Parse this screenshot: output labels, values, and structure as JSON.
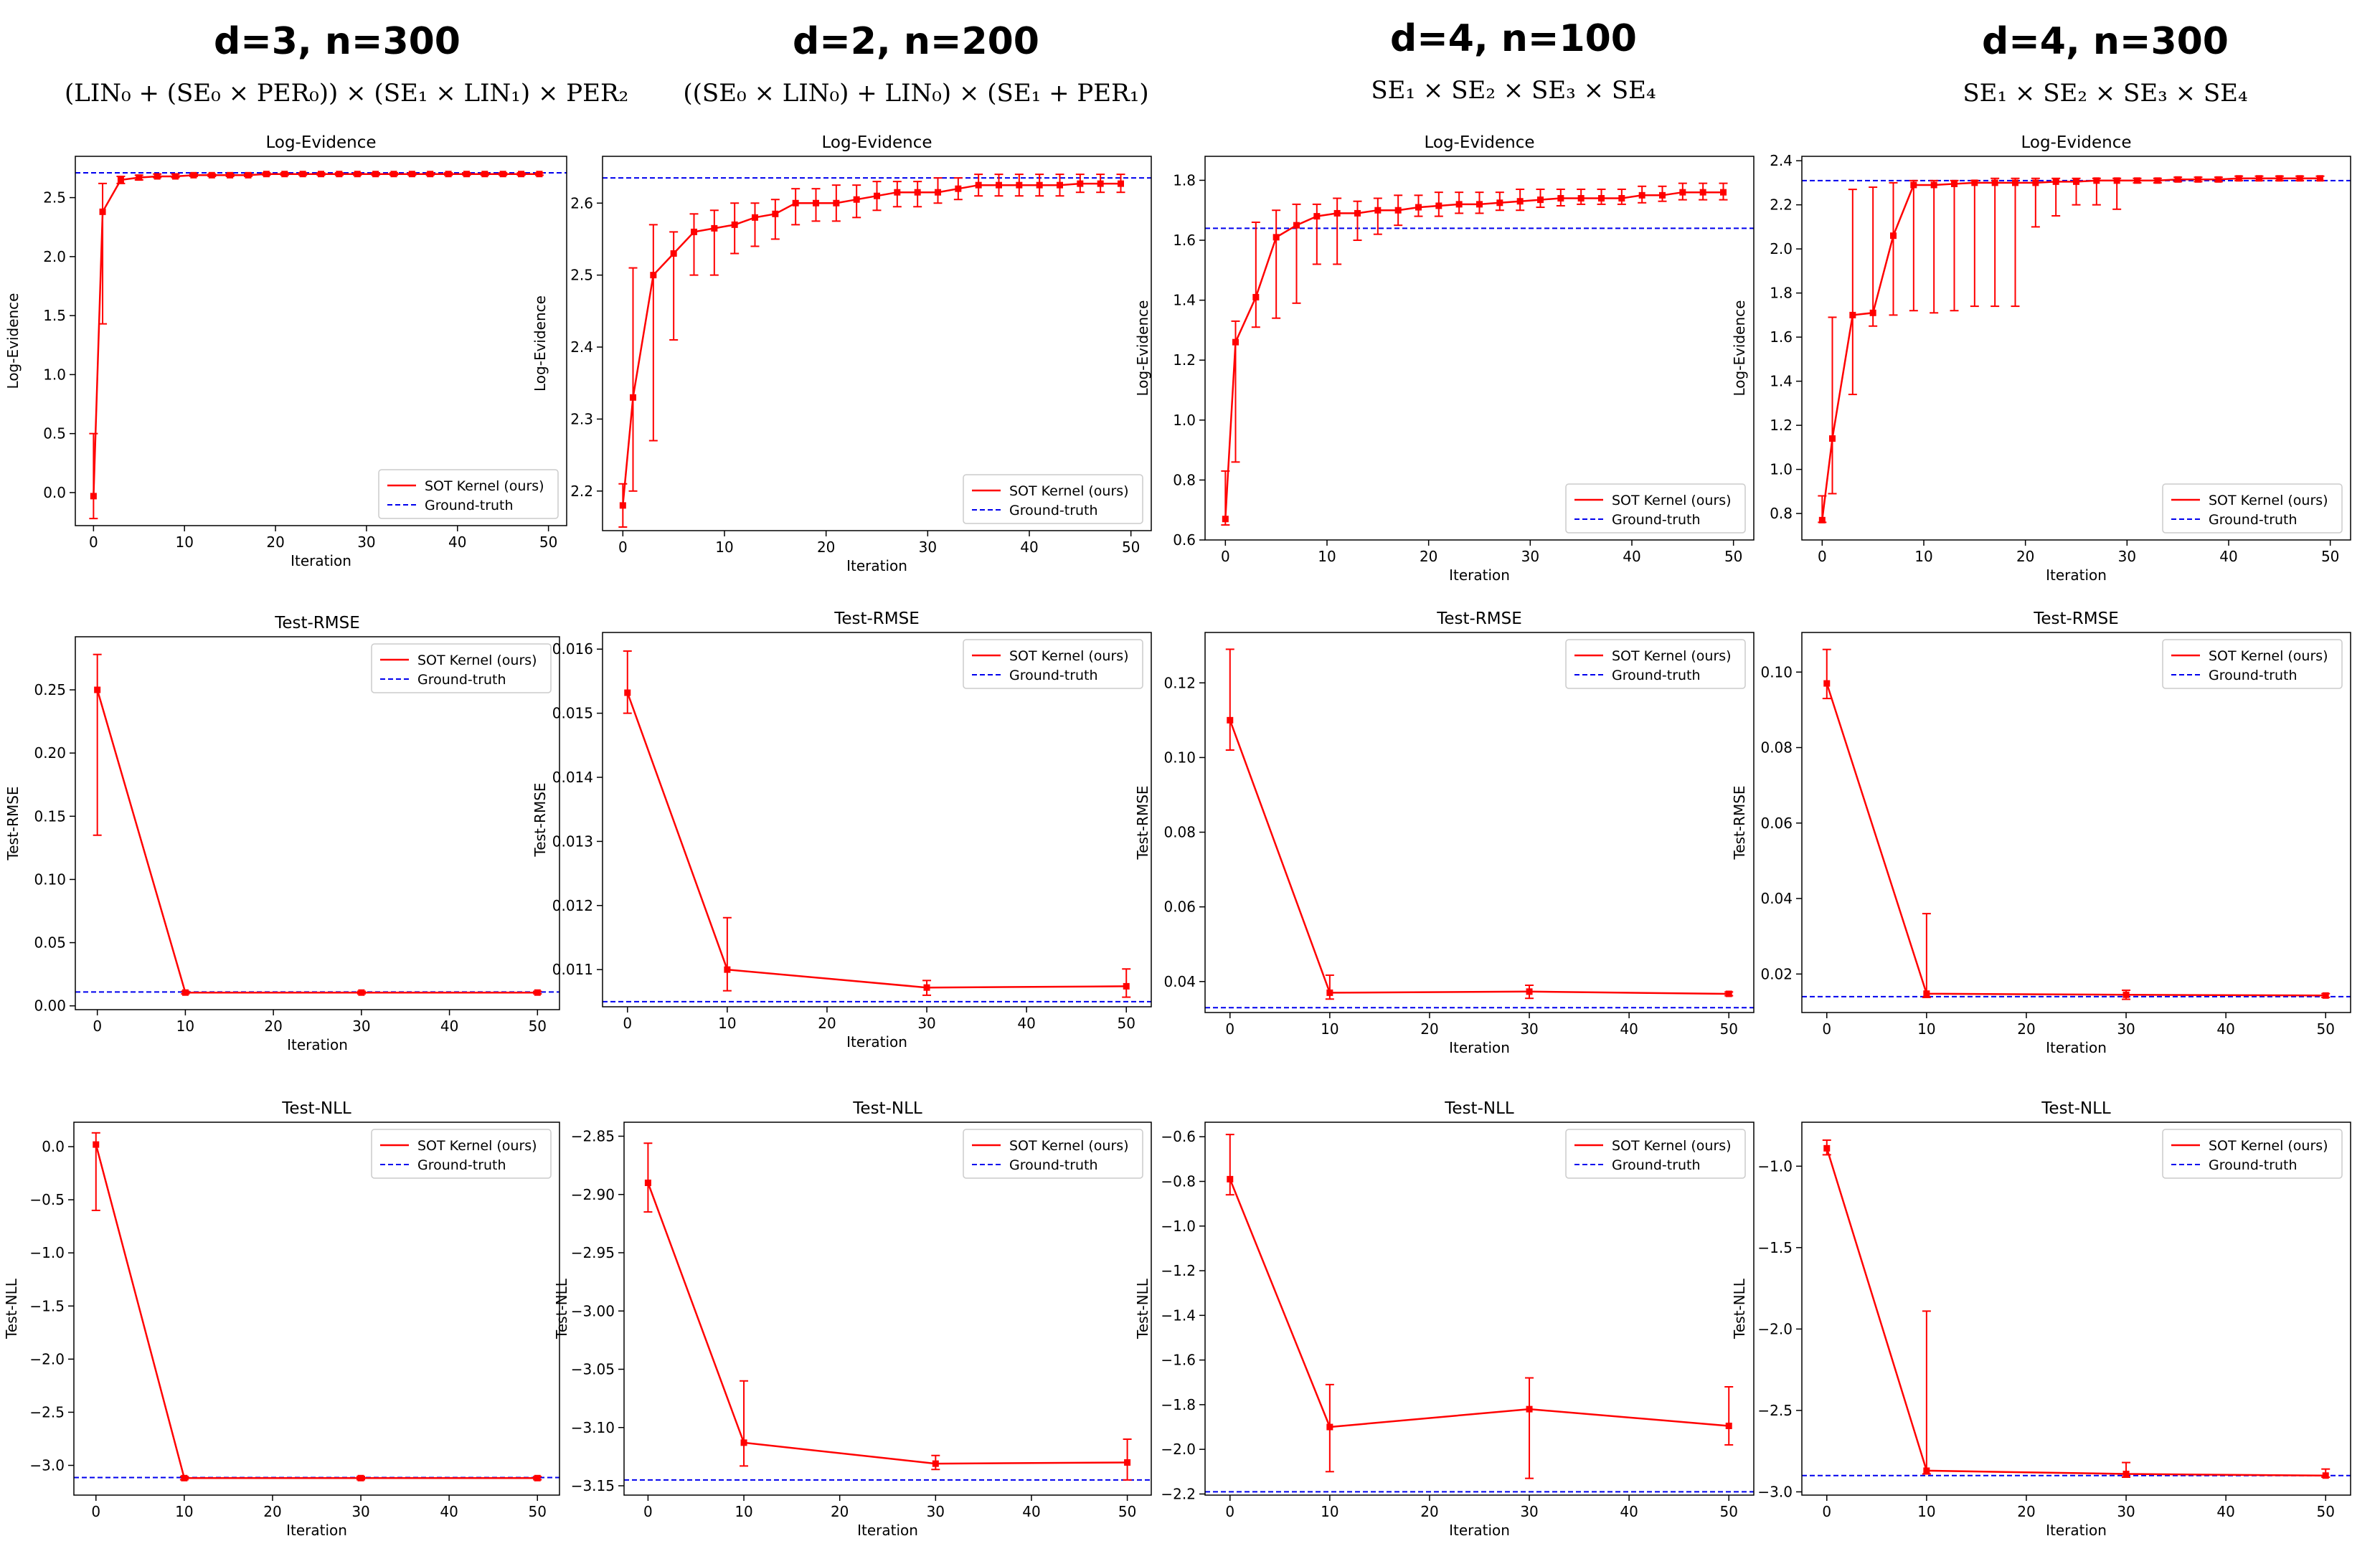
{
  "colors": {
    "sot": "#ff0000",
    "ground_truth": "#0000ee",
    "axis": "#000000"
  },
  "columns": [
    {
      "title": "d=3, n=300",
      "formula": "(LIN₀ + (SE₀ × PER₀)) × (SE₁ × LIN₁) × PER₂"
    },
    {
      "title": "d=2, n=200",
      "formula": "((SE₀ × LIN₀) + LIN₀) × (SE₁ + PER₁)"
    },
    {
      "title": "d=4, n=100",
      "formula": "SE₁ × SE₂ × SE₃ × SE₄"
    },
    {
      "title": "d=4, n=300",
      "formula": "SE₁ × SE₂ × SE₃ × SE₄"
    }
  ],
  "chart_data": [
    {
      "id": "c1-le",
      "type": "line",
      "title": "Log-Evidence",
      "xlabel": "Iteration",
      "ylabel": "Log-Evidence",
      "legend_position": "bottom-right",
      "legend": [
        "SOT Kernel (ours)",
        "Ground-truth"
      ],
      "xlim": [
        -2,
        52
      ],
      "ylim": [
        -0.28,
        2.85
      ],
      "xticks": [
        0,
        10,
        20,
        30,
        40,
        50
      ],
      "xtick_labels": [
        "0",
        "10",
        "20",
        "30",
        "40",
        "50"
      ],
      "yticks": [
        0,
        0.5,
        1,
        1.5,
        2,
        2.5
      ],
      "ytick_labels": [
        "0.0",
        "0.5",
        "1.0",
        "1.5",
        "2.0",
        "2.5"
      ],
      "ground_truth": 2.71,
      "x": [
        0,
        1,
        3,
        5,
        7,
        9,
        11,
        13,
        15,
        17,
        19,
        21,
        23,
        25,
        27,
        29,
        31,
        33,
        35,
        37,
        39,
        41,
        43,
        45,
        47,
        49
      ],
      "y": [
        -0.03,
        2.38,
        2.65,
        2.67,
        2.68,
        2.68,
        2.69,
        2.69,
        2.69,
        2.69,
        2.7,
        2.7,
        2.7,
        2.7,
        2.7,
        2.7,
        2.7,
        2.7,
        2.7,
        2.7,
        2.7,
        2.7,
        2.7,
        2.7,
        2.7,
        2.7
      ],
      "err_low": [
        -0.22,
        1.43,
        2.62,
        2.65,
        2.67,
        2.67,
        2.68,
        2.68,
        2.68,
        2.68,
        2.69,
        2.69,
        2.69,
        2.69,
        2.69,
        2.69,
        2.69,
        2.69,
        2.69,
        2.69,
        2.69,
        2.69,
        2.69,
        2.69,
        2.69,
        2.69
      ],
      "err_high": [
        0.5,
        2.62,
        2.68,
        2.69,
        2.7,
        2.7,
        2.7,
        2.7,
        2.7,
        2.7,
        2.71,
        2.71,
        2.71,
        2.71,
        2.71,
        2.71,
        2.71,
        2.71,
        2.71,
        2.71,
        2.71,
        2.71,
        2.71,
        2.71,
        2.71,
        2.71
      ]
    },
    {
      "id": "c2-le",
      "type": "line",
      "title": "Log-Evidence",
      "xlabel": "Iteration",
      "ylabel": "Log-Evidence",
      "legend_position": "bottom-right",
      "legend": [
        "SOT Kernel (ours)",
        "Ground-truth"
      ],
      "xlim": [
        -2,
        52
      ],
      "ylim": [
        2.145,
        2.665
      ],
      "xticks": [
        0,
        10,
        20,
        30,
        40,
        50
      ],
      "xtick_labels": [
        "0",
        "10",
        "20",
        "30",
        "40",
        "50"
      ],
      "yticks": [
        2.2,
        2.3,
        2.4,
        2.5,
        2.6
      ],
      "ytick_labels": [
        "2.2",
        "2.3",
        "2.4",
        "2.5",
        "2.6"
      ],
      "ground_truth": 2.635,
      "x": [
        0,
        1,
        3,
        5,
        7,
        9,
        11,
        13,
        15,
        17,
        19,
        21,
        23,
        25,
        27,
        29,
        31,
        33,
        35,
        37,
        39,
        41,
        43,
        45,
        47,
        49
      ],
      "y": [
        2.18,
        2.33,
        2.5,
        2.53,
        2.56,
        2.565,
        2.57,
        2.58,
        2.585,
        2.6,
        2.6,
        2.6,
        2.605,
        2.61,
        2.615,
        2.615,
        2.615,
        2.62,
        2.625,
        2.625,
        2.625,
        2.625,
        2.625,
        2.627,
        2.627,
        2.627
      ],
      "err_low": [
        2.15,
        2.2,
        2.27,
        2.41,
        2.5,
        2.5,
        2.53,
        2.54,
        2.55,
        2.57,
        2.575,
        2.575,
        2.58,
        2.59,
        2.595,
        2.595,
        2.6,
        2.605,
        2.61,
        2.61,
        2.61,
        2.61,
        2.61,
        2.615,
        2.615,
        2.615
      ],
      "err_high": [
        2.21,
        2.51,
        2.57,
        2.56,
        2.585,
        2.59,
        2.6,
        2.6,
        2.605,
        2.62,
        2.62,
        2.625,
        2.625,
        2.63,
        2.63,
        2.63,
        2.635,
        2.635,
        2.64,
        2.64,
        2.64,
        2.64,
        2.64,
        2.64,
        2.64,
        2.64
      ]
    },
    {
      "id": "c3-le",
      "type": "line",
      "title": "Log-Evidence",
      "xlabel": "Iteration",
      "ylabel": "Log-Evidence",
      "legend_position": "bottom-right",
      "legend": [
        "SOT Kernel (ours)",
        "Ground-truth"
      ],
      "xlim": [
        -2,
        52
      ],
      "ylim": [
        0.6,
        1.88
      ],
      "xticks": [
        0,
        10,
        20,
        30,
        40,
        50
      ],
      "xtick_labels": [
        "0",
        "10",
        "20",
        "30",
        "40",
        "50"
      ],
      "yticks": [
        0.6,
        0.8,
        1,
        1.2,
        1.4,
        1.6,
        1.8
      ],
      "ytick_labels": [
        "0.6",
        "0.8",
        "1.0",
        "1.2",
        "1.4",
        "1.6",
        "1.8"
      ],
      "ground_truth": 1.64,
      "x": [
        0,
        1,
        3,
        5,
        7,
        9,
        11,
        13,
        15,
        17,
        19,
        21,
        23,
        25,
        27,
        29,
        31,
        33,
        35,
        37,
        39,
        41,
        43,
        45,
        47,
        49
      ],
      "y": [
        0.67,
        1.26,
        1.41,
        1.61,
        1.65,
        1.68,
        1.69,
        1.69,
        1.7,
        1.7,
        1.71,
        1.715,
        1.72,
        1.72,
        1.725,
        1.73,
        1.735,
        1.74,
        1.74,
        1.74,
        1.74,
        1.75,
        1.75,
        1.76,
        1.76,
        1.76
      ],
      "err_low": [
        0.65,
        0.86,
        1.31,
        1.34,
        1.39,
        1.52,
        1.52,
        1.6,
        1.62,
        1.65,
        1.68,
        1.68,
        1.69,
        1.69,
        1.7,
        1.7,
        1.71,
        1.715,
        1.72,
        1.72,
        1.72,
        1.725,
        1.73,
        1.735,
        1.735,
        1.735
      ],
      "err_high": [
        0.83,
        1.33,
        1.66,
        1.7,
        1.72,
        1.72,
        1.74,
        1.73,
        1.74,
        1.75,
        1.75,
        1.76,
        1.76,
        1.76,
        1.76,
        1.77,
        1.77,
        1.77,
        1.77,
        1.77,
        1.77,
        1.78,
        1.78,
        1.79,
        1.79,
        1.79
      ]
    },
    {
      "id": "c4-le",
      "type": "line",
      "title": "Log-Evidence",
      "xlabel": "Iteration",
      "ylabel": "Log-Evidence",
      "legend_position": "bottom-right",
      "legend": [
        "SOT Kernel (ours)",
        "Ground-truth"
      ],
      "xlim": [
        -2,
        52
      ],
      "ylim": [
        0.68,
        2.42
      ],
      "xticks": [
        0,
        10,
        20,
        30,
        40,
        50
      ],
      "xtick_labels": [
        "0",
        "10",
        "20",
        "30",
        "40",
        "50"
      ],
      "yticks": [
        0.8,
        1,
        1.2,
        1.4,
        1.6,
        1.8,
        2,
        2.2,
        2.4
      ],
      "ytick_labels": [
        "0.8",
        "1.0",
        "1.2",
        "1.4",
        "1.6",
        "1.8",
        "2.0",
        "2.2",
        "2.4"
      ],
      "ground_truth": 2.31,
      "x": [
        0,
        1,
        3,
        5,
        7,
        9,
        11,
        13,
        15,
        17,
        19,
        21,
        23,
        25,
        27,
        29,
        31,
        33,
        35,
        37,
        39,
        41,
        43,
        45,
        47,
        49
      ],
      "y": [
        0.77,
        1.14,
        1.7,
        1.71,
        2.06,
        2.29,
        2.29,
        2.295,
        2.3,
        2.3,
        2.3,
        2.3,
        2.305,
        2.305,
        2.31,
        2.31,
        2.31,
        2.31,
        2.315,
        2.315,
        2.315,
        2.32,
        2.32,
        2.32,
        2.32,
        2.32
      ],
      "err_low": [
        0.76,
        0.89,
        1.34,
        1.65,
        1.7,
        1.72,
        1.71,
        1.72,
        1.74,
        1.74,
        1.74,
        2.1,
        2.15,
        2.2,
        2.2,
        2.18,
        2.3,
        2.3,
        2.305,
        2.305,
        2.305,
        2.31,
        2.31,
        2.31,
        2.31,
        2.31
      ],
      "err_high": [
        0.88,
        1.69,
        2.27,
        2.28,
        2.3,
        2.31,
        2.31,
        2.31,
        2.31,
        2.32,
        2.32,
        2.32,
        2.32,
        2.32,
        2.32,
        2.32,
        2.32,
        2.32,
        2.325,
        2.325,
        2.325,
        2.33,
        2.33,
        2.33,
        2.33,
        2.33
      ]
    },
    {
      "id": "c1-rmse",
      "type": "line",
      "title": "Test-RMSE",
      "xlabel": "Iteration",
      "ylabel": "Test-RMSE",
      "legend_position": "top-right",
      "legend": [
        "SOT Kernel (ours)",
        "Ground-truth"
      ],
      "xlim": [
        -2.5,
        52.5
      ],
      "ylim": [
        -0.003,
        0.292
      ],
      "xticks": [
        0,
        10,
        20,
        30,
        40,
        50
      ],
      "xtick_labels": [
        "0",
        "10",
        "20",
        "30",
        "40",
        "50"
      ],
      "yticks": [
        0,
        0.05,
        0.1,
        0.15,
        0.2,
        0.25
      ],
      "ytick_labels": [
        "0.00",
        "0.05",
        "0.10",
        "0.15",
        "0.20",
        "0.25"
      ],
      "ground_truth": 0.011,
      "x": [
        0,
        10,
        30,
        50
      ],
      "y": [
        0.25,
        0.0105,
        0.0105,
        0.0105
      ],
      "err_low": [
        0.135,
        0.0095,
        0.0095,
        0.0095
      ],
      "err_high": [
        0.278,
        0.0115,
        0.0115,
        0.0115
      ]
    },
    {
      "id": "c2-rmse",
      "type": "line",
      "title": "Test-RMSE",
      "xlabel": "Iteration",
      "ylabel": "Test-RMSE",
      "legend_position": "top-right",
      "legend": [
        "SOT Kernel (ours)",
        "Ground-truth"
      ],
      "xlim": [
        -2.5,
        52.5
      ],
      "ylim": [
        0.01042,
        0.01626
      ],
      "xticks": [
        0,
        10,
        20,
        30,
        40,
        50
      ],
      "xtick_labels": [
        "0",
        "10",
        "20",
        "30",
        "40",
        "50"
      ],
      "yticks": [
        0.011,
        0.012,
        0.013,
        0.014,
        0.015,
        0.016
      ],
      "ytick_labels": [
        "0.011",
        "0.012",
        "0.013",
        "0.014",
        "0.015",
        "0.016"
      ],
      "ground_truth": 0.0105,
      "x": [
        0,
        10,
        30,
        50
      ],
      "y": [
        0.01532,
        0.011,
        0.01072,
        0.01074
      ],
      "err_low": [
        0.015,
        0.01067,
        0.0106,
        0.01057
      ],
      "err_high": [
        0.01597,
        0.01181,
        0.01083,
        0.01101
      ]
    },
    {
      "id": "c3-rmse",
      "type": "line",
      "title": "Test-RMSE",
      "xlabel": "Iteration",
      "ylabel": "Test-RMSE",
      "legend_position": "top-right",
      "legend": [
        "SOT Kernel (ours)",
        "Ground-truth"
      ],
      "xlim": [
        -2.5,
        52.5
      ],
      "ylim": [
        0.0317,
        0.1335
      ],
      "xticks": [
        0,
        10,
        20,
        30,
        40,
        50
      ],
      "xtick_labels": [
        "0",
        "10",
        "20",
        "30",
        "40",
        "50"
      ],
      "yticks": [
        0.04,
        0.06,
        0.08,
        0.1,
        0.12
      ],
      "ytick_labels": [
        "0.04",
        "0.06",
        "0.08",
        "0.10",
        "0.12"
      ],
      "ground_truth": 0.033,
      "x": [
        0,
        10,
        30,
        50
      ],
      "y": [
        0.11,
        0.037,
        0.0373,
        0.0367
      ],
      "err_low": [
        0.102,
        0.0353,
        0.0355,
        0.0362
      ],
      "err_high": [
        0.129,
        0.0417,
        0.039,
        0.0372
      ]
    },
    {
      "id": "c4-rmse",
      "type": "line",
      "title": "Test-RMSE",
      "xlabel": "Iteration",
      "ylabel": "Test-RMSE",
      "legend_position": "top-right",
      "legend": [
        "SOT Kernel (ours)",
        "Ground-truth"
      ],
      "xlim": [
        -2.5,
        52.5
      ],
      "ylim": [
        0.0098,
        0.1105
      ],
      "xticks": [
        0,
        10,
        20,
        30,
        40,
        50
      ],
      "xtick_labels": [
        "0",
        "10",
        "20",
        "30",
        "40",
        "50"
      ],
      "yticks": [
        0.02,
        0.04,
        0.06,
        0.08,
        0.1
      ],
      "ytick_labels": [
        "0.02",
        "0.04",
        "0.06",
        "0.08",
        "0.10"
      ],
      "ground_truth": 0.014,
      "x": [
        0,
        10,
        30,
        50
      ],
      "y": [
        0.097,
        0.0148,
        0.0145,
        0.0143
      ],
      "err_low": [
        0.093,
        0.0138,
        0.0133,
        0.0138
      ],
      "err_high": [
        0.106,
        0.036,
        0.0157,
        0.0148
      ]
    },
    {
      "id": "c1-nll",
      "type": "line",
      "title": "Test-NLL",
      "xlabel": "Iteration",
      "ylabel": "Test-NLL",
      "legend_position": "top-right",
      "legend": [
        "SOT Kernel (ours)",
        "Ground-truth"
      ],
      "xlim": [
        -2.5,
        52.5
      ],
      "ylim": [
        -3.28,
        0.23
      ],
      "xticks": [
        0,
        10,
        20,
        30,
        40,
        50
      ],
      "xtick_labels": [
        "0",
        "10",
        "20",
        "30",
        "40",
        "50"
      ],
      "yticks": [
        0,
        -0.5,
        -1,
        -1.5,
        -2,
        -2.5,
        -3
      ],
      "ytick_labels": [
        "0.0",
        "−0.5",
        "−1.0",
        "−1.5",
        "−2.0",
        "−2.5",
        "−3.0"
      ],
      "ground_truth": -3.115,
      "x": [
        0,
        10,
        30,
        50
      ],
      "y": [
        0.02,
        -3.12,
        -3.12,
        -3.12
      ],
      "err_low": [
        -0.6,
        -3.135,
        -3.135,
        -3.135
      ],
      "err_high": [
        0.13,
        -3.105,
        -3.105,
        -3.105
      ]
    },
    {
      "id": "c2-nll",
      "type": "line",
      "title": "Test-NLL",
      "xlabel": "Iteration",
      "ylabel": "Test-NLL",
      "legend_position": "top-right",
      "legend": [
        "SOT Kernel (ours)",
        "Ground-truth"
      ],
      "xlim": [
        -2.5,
        52.5
      ],
      "ylim": [
        -3.158,
        -2.838
      ],
      "xticks": [
        0,
        10,
        20,
        30,
        40,
        50
      ],
      "xtick_labels": [
        "0",
        "10",
        "20",
        "30",
        "40",
        "50"
      ],
      "yticks": [
        -2.85,
        -2.9,
        -2.95,
        -3,
        -3.05,
        -3.1,
        -3.15
      ],
      "ytick_labels": [
        "−2.85",
        "−2.90",
        "−2.95",
        "−3.00",
        "−3.05",
        "−3.10",
        "−3.15"
      ],
      "ground_truth": -3.145,
      "x": [
        0,
        10,
        30,
        50
      ],
      "y": [
        -2.89,
        -3.113,
        -3.131,
        -3.13
      ],
      "err_low": [
        -2.915,
        -3.133,
        -3.136,
        -3.145
      ],
      "err_high": [
        -2.856,
        -3.06,
        -3.124,
        -3.11
      ]
    },
    {
      "id": "c3-nll",
      "type": "line",
      "title": "Test-NLL",
      "xlabel": "Iteration",
      "ylabel": "Test-NLL",
      "legend_position": "top-right",
      "legend": [
        "SOT Kernel (ours)",
        "Ground-truth"
      ],
      "xlim": [
        -2.5,
        52.5
      ],
      "ylim": [
        -2.205,
        -0.535
      ],
      "xticks": [
        0,
        10,
        20,
        30,
        40,
        50
      ],
      "xtick_labels": [
        "0",
        "10",
        "20",
        "30",
        "40",
        "50"
      ],
      "yticks": [
        -0.6,
        -0.8,
        -1,
        -1.2,
        -1.4,
        -1.6,
        -1.8,
        -2,
        -2.2
      ],
      "ytick_labels": [
        "−0.6",
        "−0.8",
        "−1.0",
        "−1.2",
        "−1.4",
        "−1.6",
        "−1.8",
        "−2.0",
        "−2.2"
      ],
      "ground_truth": -2.19,
      "x": [
        0,
        10,
        30,
        50
      ],
      "y": [
        -0.79,
        -1.9,
        -1.82,
        -1.895
      ],
      "err_low": [
        -0.86,
        -2.1,
        -2.13,
        -1.98
      ],
      "err_high": [
        -0.59,
        -1.71,
        -1.68,
        -1.72
      ]
    },
    {
      "id": "c4-nll",
      "type": "line",
      "title": "Test-NLL",
      "xlabel": "Iteration",
      "ylabel": "Test-NLL",
      "legend_position": "top-right",
      "legend": [
        "SOT Kernel (ours)",
        "Ground-truth"
      ],
      "xlim": [
        -2.5,
        52.5
      ],
      "ylim": [
        -3.02,
        -0.73
      ],
      "xticks": [
        0,
        10,
        20,
        30,
        40,
        50
      ],
      "xtick_labels": [
        "0",
        "10",
        "20",
        "30",
        "40",
        "50"
      ],
      "yticks": [
        -1,
        -1.5,
        -2,
        -2.5,
        -3
      ],
      "ytick_labels": [
        "−1.0",
        "−1.5",
        "−2.0",
        "−2.5",
        "−3.0"
      ],
      "ground_truth": -2.9,
      "x": [
        0,
        10,
        30,
        50
      ],
      "y": [
        -0.89,
        -2.87,
        -2.89,
        -2.9
      ],
      "err_low": [
        -0.93,
        -2.89,
        -2.91,
        -2.91
      ],
      "err_high": [
        -0.84,
        -1.89,
        -2.82,
        -2.86
      ]
    }
  ]
}
